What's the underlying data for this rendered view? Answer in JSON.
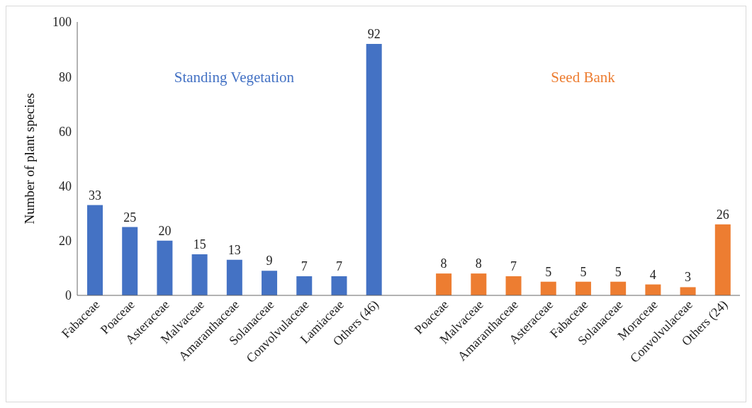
{
  "chart_data": {
    "type": "bar",
    "categories": [
      "Fabaceae",
      "Poaceae",
      "Asteraceae",
      "Malvaceae",
      "Amaranthaceae",
      "Solanaceae",
      "Convolvulaceae",
      "Lamiaceae",
      "Others (46)",
      null,
      "Poaceae",
      "Malvaceae",
      "Amaranthaceae",
      "Asteraceae",
      "Fabaceae",
      "Solanaceae",
      "Moraceae",
      "Convolvulaceae",
      "Others (24)"
    ],
    "series": [
      {
        "name": "Standing Vegetation",
        "color": "#4472c4",
        "values": [
          33,
          25,
          20,
          15,
          13,
          9,
          7,
          7,
          92,
          null,
          null,
          null,
          null,
          null,
          null,
          null,
          null,
          null,
          null
        ]
      },
      {
        "name": "Seed Bank",
        "color": "#ed7d31",
        "values": [
          null,
          null,
          null,
          null,
          null,
          null,
          null,
          null,
          null,
          null,
          8,
          8,
          7,
          5,
          5,
          5,
          4,
          3,
          26
        ]
      }
    ],
    "ylabel": "Number of plant species",
    "ylim": [
      0,
      100
    ],
    "yticks": [
      0,
      20,
      40,
      60,
      80,
      100
    ],
    "data_labels": true,
    "grid": false,
    "legend": false
  }
}
